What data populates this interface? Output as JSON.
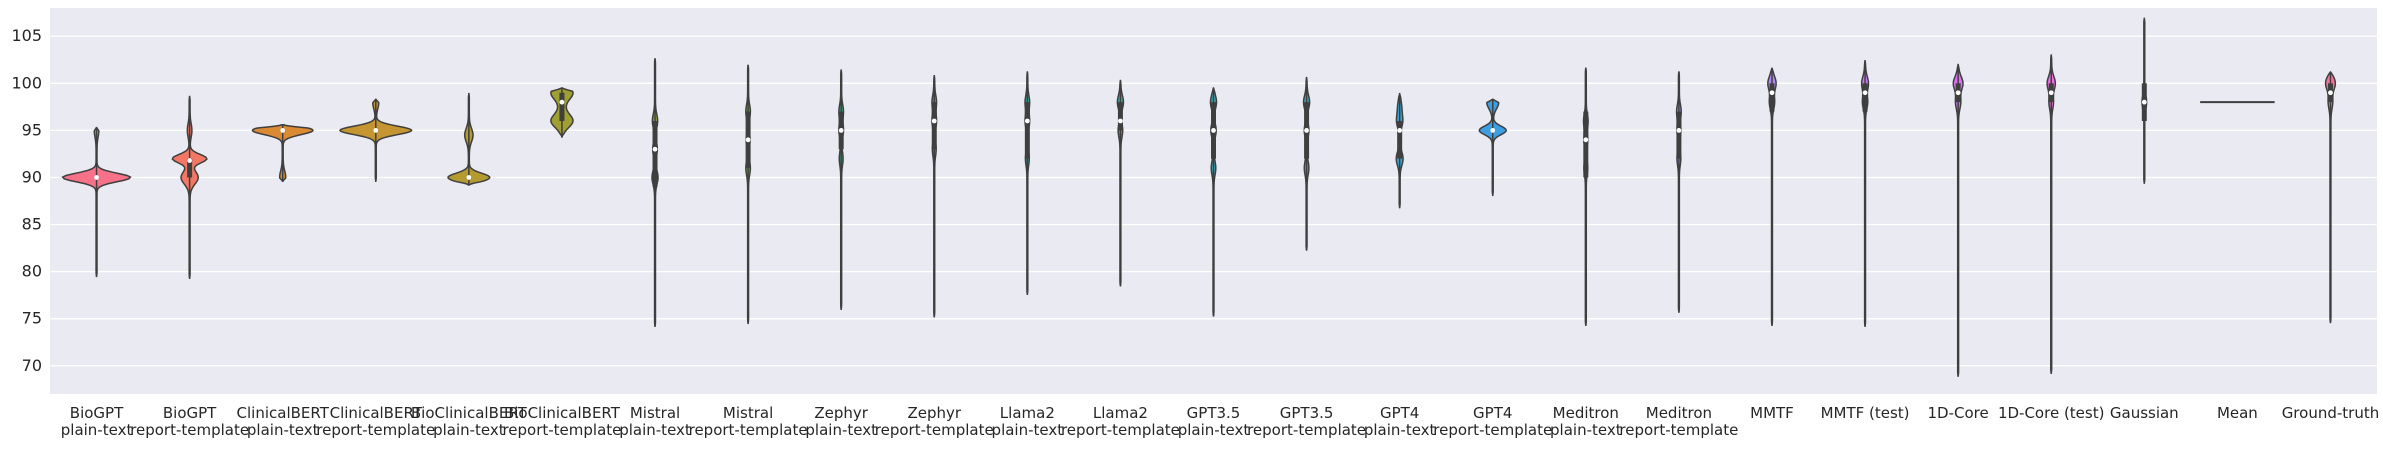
{
  "chart_data": {
    "type": "violin",
    "title": "",
    "xlabel": "",
    "ylabel": "",
    "ylim": [
      67,
      108
    ],
    "yticks": [
      70,
      75,
      80,
      85,
      90,
      95,
      100,
      105
    ],
    "grid": true,
    "background": "#EAEAF2",
    "categories": [
      {
        "line1": "BioGPT",
        "line2": "plain-text",
        "color": "#F77189",
        "min": 79.5,
        "max": 95.3,
        "median": 90,
        "q1": 90,
        "q3": 90,
        "peaks": [
          [
            90,
            0.9
          ],
          [
            95,
            0.05
          ]
        ]
      },
      {
        "line1": "BioGPT",
        "line2": "report-template",
        "color": "#F37764",
        "min": 79.3,
        "max": 98.6,
        "median": 91.8,
        "q1": 90,
        "q3": 92,
        "peaks": [
          [
            92,
            0.45
          ],
          [
            90,
            0.22
          ],
          [
            95,
            0.05
          ]
        ]
      },
      {
        "line1": "ClinicalBERT",
        "line2": "plain-text",
        "color": "#DA8A32",
        "min": 89.6,
        "max": 95.6,
        "median": 95,
        "q1": 95,
        "q3": 95,
        "peaks": [
          [
            95,
            0.8
          ],
          [
            90,
            0.07
          ]
        ]
      },
      {
        "line1": "ClinicalBERT",
        "line2": "report-template",
        "color": "#C59531",
        "min": 89.6,
        "max": 98.3,
        "median": 95,
        "q1": 95,
        "q3": 95,
        "peaks": [
          [
            95,
            0.95
          ],
          [
            98,
            0.07
          ]
        ]
      },
      {
        "line1": "BioClinicalBERT",
        "line2": "plain-text",
        "color": "#B39A31",
        "min": 89.2,
        "max": 98.9,
        "median": 90,
        "q1": 90,
        "q3": 90,
        "peaks": [
          [
            90,
            0.55
          ],
          [
            94.5,
            0.1
          ]
        ]
      },
      {
        "line1": "BioClinicalBERT",
        "line2": "report-template",
        "color": "#A09F32",
        "min": 94.3,
        "max": 99.5,
        "median": 98,
        "q1": 96,
        "q3": 99,
        "peaks": [
          [
            99,
            0.28
          ],
          [
            96,
            0.28
          ],
          [
            97.5,
            0.05
          ]
        ]
      },
      {
        "line1": "Mistral",
        "line2": "plain-text",
        "color": "#85A632",
        "min": 74.2,
        "max": 102.6,
        "median": 93,
        "q1": 89,
        "q3": 96,
        "peaks": [
          [
            96,
            0.06
          ],
          [
            90,
            0.07
          ],
          [
            93,
            0.05
          ]
        ]
      },
      {
        "line1": "Mistral",
        "line2": "report-template",
        "color": "#57AE32",
        "min": 74.5,
        "max": 101.9,
        "median": 94,
        "q1": 91,
        "q3": 97,
        "peaks": [
          [
            97,
            0.05
          ],
          [
            91,
            0.05
          ],
          [
            94,
            0.04
          ]
        ]
      },
      {
        "line1": "Zephyr",
        "line2": "plain-text",
        "color": "#33B07A",
        "min": 76,
        "max": 101.4,
        "median": 95,
        "q1": 93,
        "q3": 97,
        "peaks": [
          [
            97,
            0.05
          ],
          [
            95,
            0.05
          ],
          [
            92,
            0.04
          ]
        ]
      },
      {
        "line1": "Zephyr",
        "line2": "report-template",
        "color": "#35AD94",
        "min": 75.2,
        "max": 100.8,
        "median": 96,
        "q1": 93,
        "q3": 98,
        "peaks": [
          [
            98,
            0.05
          ],
          [
            96,
            0.05
          ],
          [
            93,
            0.04
          ]
        ]
      },
      {
        "line1": "Llama2",
        "line2": "plain-text",
        "color": "#36ABA1",
        "min": 77.6,
        "max": 101.2,
        "median": 96,
        "q1": 92,
        "q3": 98,
        "peaks": [
          [
            98,
            0.05
          ],
          [
            96,
            0.05
          ],
          [
            92,
            0.04
          ]
        ]
      },
      {
        "line1": "Llama2",
        "line2": "report-template",
        "color": "#37AAAD",
        "min": 78.5,
        "max": 100.3,
        "median": 96,
        "q1": 95,
        "q3": 98,
        "peaks": [
          [
            98,
            0.07
          ],
          [
            95,
            0.05
          ]
        ]
      },
      {
        "line1": "GPT3.5",
        "line2": "plain-text",
        "color": "#38A8B9",
        "min": 75.3,
        "max": 99.5,
        "median": 95,
        "q1": 92,
        "q3": 98,
        "peaks": [
          [
            98,
            0.07
          ],
          [
            95,
            0.06
          ],
          [
            91,
            0.05
          ]
        ]
      },
      {
        "line1": "GPT3.5",
        "line2": "report-template",
        "color": "#3AA5C5",
        "min": 82.3,
        "max": 100.6,
        "median": 95,
        "q1": 92,
        "q3": 98,
        "peaks": [
          [
            98,
            0.07
          ],
          [
            95,
            0.05
          ],
          [
            91,
            0.05
          ]
        ]
      },
      {
        "line1": "GPT4",
        "line2": "plain-text",
        "color": "#3BA3D3",
        "min": 86.8,
        "max": 98.9,
        "median": 95,
        "q1": 92,
        "q3": 96,
        "peaks": [
          [
            96,
            0.07
          ],
          [
            92,
            0.08
          ],
          [
            97.5,
            0.04
          ]
        ]
      },
      {
        "line1": "GPT4",
        "line2": "report-template",
        "color": "#3D9FE3",
        "min": 88.1,
        "max": 98.3,
        "median": 95,
        "q1": 95,
        "q3": 95,
        "peaks": [
          [
            95,
            0.35
          ],
          [
            98,
            0.15
          ]
        ]
      },
      {
        "line1": "Meditron",
        "line2": "plain-text",
        "color": "#6E9AF5",
        "min": 74.3,
        "max": 101.6,
        "median": 94,
        "q1": 90,
        "q3": 97,
        "peaks": [
          [
            96,
            0.05
          ],
          [
            91,
            0.04
          ],
          [
            94,
            0.04
          ]
        ]
      },
      {
        "line1": "Meditron",
        "line2": "report-template",
        "color": "#9793F4",
        "min": 75.7,
        "max": 101.2,
        "median": 95,
        "q1": 92,
        "q3": 97,
        "peaks": [
          [
            97,
            0.05
          ],
          [
            92,
            0.04
          ],
          [
            95,
            0.04
          ]
        ]
      },
      {
        "line1": "MMTF",
        "line2": "",
        "color": "#B288F4",
        "min": 74.3,
        "max": 101.6,
        "median": 99,
        "q1": 97,
        "q3": 100,
        "peaks": [
          [
            100,
            0.1
          ],
          [
            98,
            0.06
          ]
        ]
      },
      {
        "line1": "MMTF (test)",
        "line2": "",
        "color": "#C77EF4",
        "min": 74.2,
        "max": 102.4,
        "median": 99,
        "q1": 97,
        "q3": 100,
        "peaks": [
          [
            100,
            0.08
          ],
          [
            98,
            0.06
          ]
        ]
      },
      {
        "line1": "1D-Core",
        "line2": "",
        "color": "#DB6FF4",
        "min": 68.9,
        "max": 102,
        "median": 99,
        "q1": 98,
        "q3": 100,
        "peaks": [
          [
            100,
            0.12
          ],
          [
            98,
            0.06
          ]
        ]
      },
      {
        "line1": "1D-Core (test)",
        "line2": "",
        "color": "#F06BE1",
        "min": 69.2,
        "max": 103,
        "median": 99,
        "q1": 98,
        "q3": 100,
        "peaks": [
          [
            100,
            0.1
          ],
          [
            98,
            0.05
          ]
        ]
      },
      {
        "line1": "Gaussian",
        "line2": "",
        "color": "#F56CC9",
        "min": 89.4,
        "max": 106.9,
        "median": 98,
        "q1": 96,
        "q3": 100,
        "peaks": [
          [
            98,
            0.05
          ]
        ]
      },
      {
        "line1": "Mean",
        "line2": "",
        "color": "#F66FB0",
        "min": 98,
        "max": 98,
        "median": 98,
        "q1": 98,
        "q3": 98,
        "flat": true,
        "peaks": []
      },
      {
        "line1": "Ground-truth",
        "line2": "",
        "color": "#F7719B",
        "min": 74.6,
        "max": 101.2,
        "median": 99,
        "q1": 98,
        "q3": 100,
        "peaks": [
          [
            100,
            0.12
          ],
          [
            98,
            0.05
          ]
        ]
      }
    ]
  }
}
